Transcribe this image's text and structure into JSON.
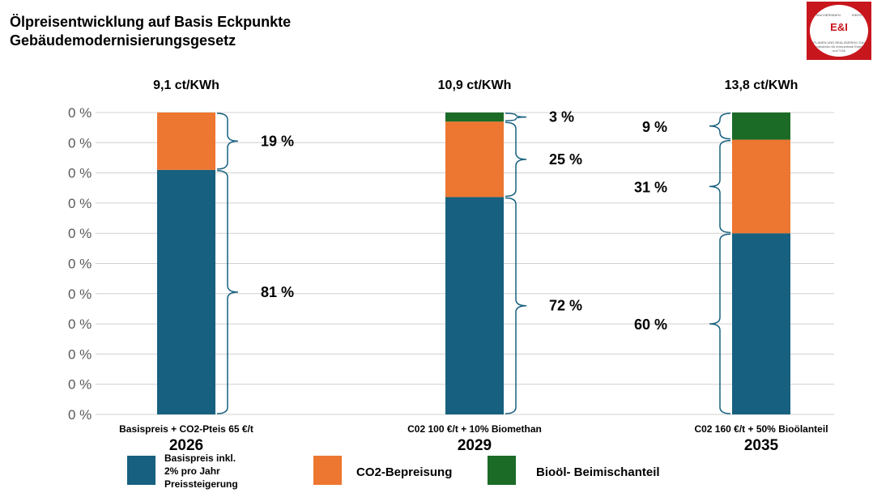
{
  "header": {
    "title_line1": "Ölpreisentwicklung auf Basis Eckpunkte",
    "title_line2": "Gebäudemodernisierungsgesetz"
  },
  "logo": {
    "icon": "brain-lightbulb-logo",
    "text_top_left": "MACHERINNEN",
    "text_top_right": "IDEEN",
    "text_mid": "E&I",
    "text_bottom": "PLANEN UND REALISIEREN / EAI Ingenieurbüro für erneuerbare Energien und TGA"
  },
  "colors": {
    "basis": "#17607f",
    "co2": "#ed7631",
    "bio": "#1b6b27",
    "grid": "#d0d0d0",
    "brace": "#17607f"
  },
  "chart_data": {
    "type": "bar",
    "stacked": true,
    "percent_stacked": true,
    "y_tick_labels": [
      "0 %",
      "0 %",
      "0 %",
      "0 %",
      "0 %",
      "0 %",
      "0 %",
      "0 %",
      "0 %",
      "0 %",
      "0 %"
    ],
    "ylim": [
      0,
      100
    ],
    "grid": true,
    "categories": [
      "2026",
      "2029",
      "2035"
    ],
    "price_labels": [
      "9,1 ct/KWh",
      "10,9 ct/KWh",
      "13,8 ct/KWh"
    ],
    "scenario_labels": [
      "Basispreis + CO2-Pteis 65 €/t",
      "C02 100 €/t + 10% Biomethan",
      "C02 160 €/t + 50% Bioölanteil"
    ],
    "series": [
      {
        "name": "Basispreis inkl. 2% pro Jahr Preissteigerung",
        "values": [
          81,
          72,
          60
        ],
        "labels": [
          "81 %",
          "72 %",
          "60 %"
        ]
      },
      {
        "name": "CO2-Bepreisung",
        "values": [
          19,
          25,
          31
        ],
        "labels": [
          "19 %",
          "25 %",
          "31  %"
        ]
      },
      {
        "name": "Bioöl- Beimischanteil",
        "values": [
          0,
          3,
          9
        ],
        "labels": [
          "",
          "3 %",
          "9 %"
        ]
      }
    ],
    "legend": {
      "placement": "bottom",
      "entries": [
        {
          "lines": [
            "Basispreis inkl.",
            "2% pro Jahr",
            "Preissteigerung"
          ],
          "color": "#17607f"
        },
        {
          "lines": [
            "CO2-Bepreisung"
          ],
          "color": "#ed7631"
        },
        {
          "lines": [
            "Bioöl- Beimischanteil"
          ],
          "color": "#1b6b27"
        }
      ]
    }
  }
}
